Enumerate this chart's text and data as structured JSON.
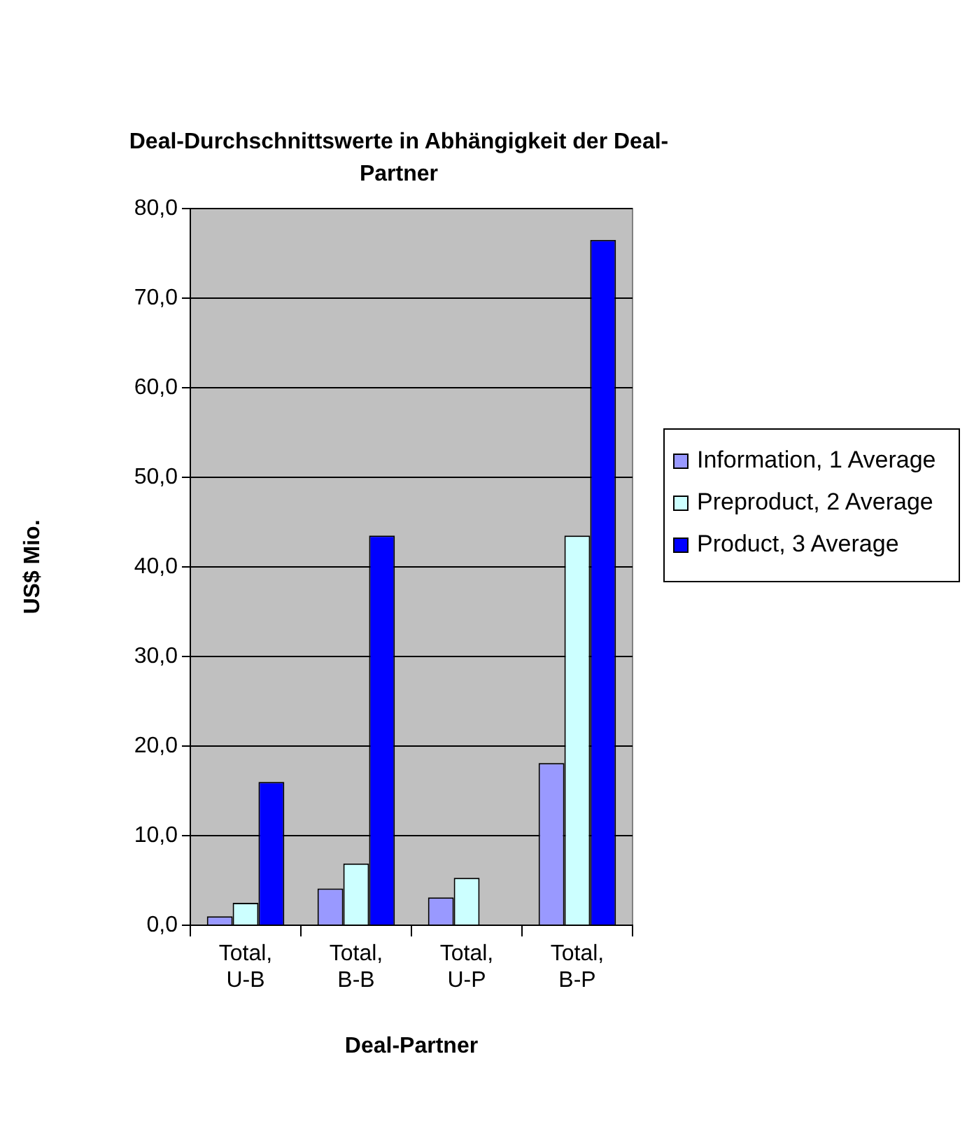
{
  "chart_data": {
    "type": "bar",
    "title": "Deal-Durchschnittswerte in Abhängigkeit der Deal-Partner",
    "xlabel": "Deal-Partner",
    "ylabel": "US$ Mio.",
    "categories": [
      "Total, U-B",
      "Total, B-B",
      "Total, U-P",
      "Total, B-P"
    ],
    "series": [
      {
        "name": "Information, 1 Average",
        "color": "#9999ff",
        "values": [
          1.0,
          4.1,
          3.1,
          18.1
        ]
      },
      {
        "name": "Preproduct, 2 Average",
        "color": "#ccffff",
        "values": [
          2.5,
          6.9,
          5.3,
          43.5
        ]
      },
      {
        "name": "Product, 3 Average",
        "color": "#0000ff",
        "values": [
          16.0,
          43.5,
          null,
          76.5
        ]
      }
    ],
    "ylim": [
      0,
      80
    ],
    "yticks": [
      {
        "value": 0,
        "label": "0,0"
      },
      {
        "value": 10,
        "label": "10,0"
      },
      {
        "value": 20,
        "label": "20,0"
      },
      {
        "value": 30,
        "label": "30,0"
      },
      {
        "value": 40,
        "label": "40,0"
      },
      {
        "value": 50,
        "label": "50,0"
      },
      {
        "value": 60,
        "label": "60,0"
      },
      {
        "value": 70,
        "label": "70,0"
      },
      {
        "value": 80,
        "label": "80,0"
      }
    ],
    "grid": "y",
    "legend": "right"
  }
}
